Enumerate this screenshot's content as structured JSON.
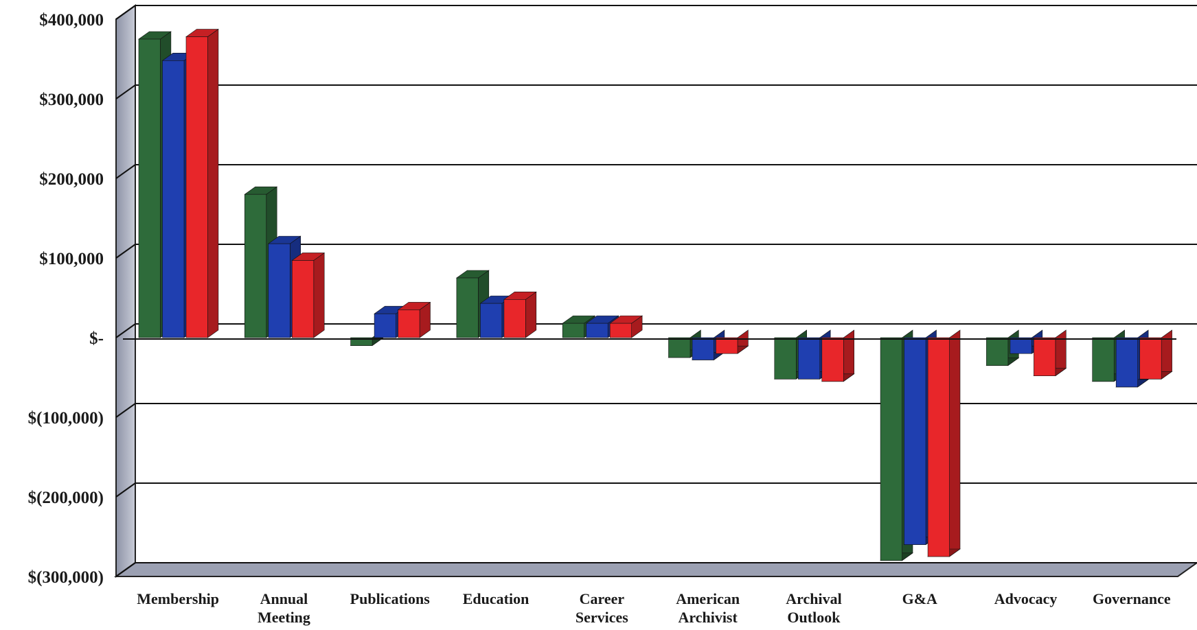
{
  "chart_data": {
    "type": "bar",
    "style": "3d-clustered-column",
    "categories": [
      [
        "Membership"
      ],
      [
        "Annual",
        "Meeting"
      ],
      [
        "Publications"
      ],
      [
        "Education"
      ],
      [
        "Career",
        "Services"
      ],
      [
        "American",
        "Archivist"
      ],
      [
        "Archival",
        "Outlook"
      ],
      [
        "G&A"
      ],
      [
        "Advocacy"
      ],
      [
        "Governance"
      ]
    ],
    "series": [
      {
        "color": "#2e6b3a",
        "values": [
          375000,
          180000,
          -10000,
          75000,
          18000,
          -25000,
          -52000,
          -280000,
          -35000,
          -55000
        ]
      },
      {
        "color": "#1f3fb0",
        "values": [
          348000,
          118000,
          30000,
          43000,
          18000,
          -28000,
          -52000,
          -260000,
          -20000,
          -62000
        ]
      },
      {
        "color": "#e8262a",
        "values": [
          378000,
          97000,
          35000,
          48000,
          18000,
          -20000,
          -55000,
          -275000,
          -48000,
          -52000
        ]
      }
    ],
    "ylim": [
      -300000,
      400000
    ],
    "ytick_values": [
      400000,
      300000,
      200000,
      100000,
      0,
      -100000,
      -200000,
      -300000
    ],
    "ytick_labels": [
      "$400,000",
      "$300,000",
      "$200,000",
      "$100,000",
      "$-",
      "$(100,000)",
      "$(200,000)",
      "$(300,000)"
    ],
    "grid": true,
    "legend": "none"
  }
}
